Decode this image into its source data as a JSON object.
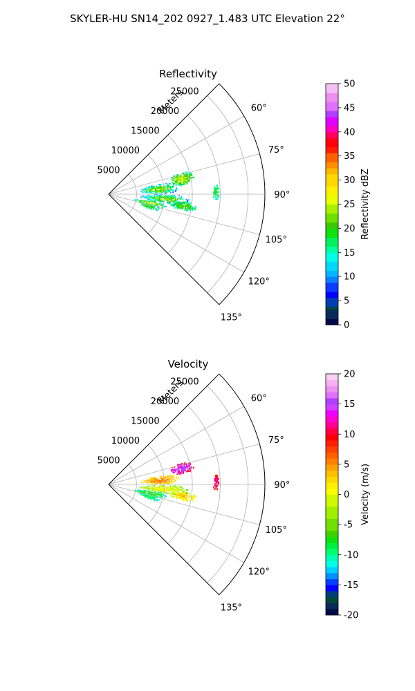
{
  "figure": {
    "suptitle": "SKYLER-HU  SN14_202  0927_1.483 UTC Elevation 22°"
  },
  "chart_data": [
    {
      "type": "polar-sector-heatmap",
      "title": "Reflectivity",
      "radial_label": "Meters",
      "radial_ticks": [
        5000,
        10000,
        15000,
        20000,
        25000
      ],
      "angle_ticks": [
        60,
        75,
        90,
        105,
        120,
        135
      ],
      "angle_range_deg": [
        45,
        135
      ],
      "radius_max": 28000,
      "grid": true,
      "colorbar": {
        "label": "Reflectivity dBZ",
        "ticks": [
          0,
          5,
          10,
          15,
          20,
          25,
          30,
          35,
          40,
          45,
          50
        ],
        "range": [
          0,
          50
        ]
      },
      "echo_regions": [
        {
          "az_range": [
            73,
            83
          ],
          "r_range": [
            11000,
            15500
          ],
          "value_range": [
            12,
            26
          ]
        },
        {
          "az_range": [
            78,
            90
          ],
          "r_range": [
            5500,
            12500
          ],
          "value_range": [
            5,
            25
          ]
        },
        {
          "az_range": [
            90,
            99
          ],
          "r_range": [
            5500,
            14500
          ],
          "value_range": [
            5,
            24
          ]
        },
        {
          "az_range": [
            98,
            106
          ],
          "r_range": [
            4500,
            10500
          ],
          "value_range": [
            10,
            26
          ]
        },
        {
          "az_range": [
            103,
            110
          ],
          "r_range": [
            5500,
            9500
          ],
          "value_range": [
            10,
            22
          ]
        },
        {
          "az_range": [
            95,
            102
          ],
          "r_range": [
            11000,
            16000
          ],
          "value_range": [
            12,
            22
          ]
        },
        {
          "az_range": [
            84,
            93
          ],
          "r_range": [
            18500,
            19800
          ],
          "value_range": [
            12,
            20
          ]
        }
      ]
    },
    {
      "type": "polar-sector-heatmap",
      "title": "Velocity",
      "radial_label": "Meters",
      "radial_ticks": [
        5000,
        10000,
        15000,
        20000,
        25000
      ],
      "angle_ticks": [
        60,
        75,
        90,
        105,
        120,
        135
      ],
      "angle_range_deg": [
        45,
        135
      ],
      "radius_max": 28000,
      "grid": true,
      "colorbar": {
        "label": "Velocity (m/s)",
        "ticks": [
          -20,
          -15,
          -10,
          -5,
          0,
          5,
          10,
          15,
          20
        ],
        "range": [
          -20,
          20
        ]
      },
      "echo_regions": [
        {
          "az_range": [
            73,
            82
          ],
          "r_range": [
            11000,
            15500
          ],
          "value_range": [
            8,
            16
          ]
        },
        {
          "az_range": [
            80,
            90
          ],
          "r_range": [
            5500,
            12500
          ],
          "value_range": [
            0,
            6
          ]
        },
        {
          "az_range": [
            90,
            99
          ],
          "r_range": [
            5500,
            14500
          ],
          "value_range": [
            -7,
            1
          ]
        },
        {
          "az_range": [
            98,
            106
          ],
          "r_range": [
            4500,
            10500
          ],
          "value_range": [
            -13,
            -6
          ]
        },
        {
          "az_range": [
            103,
            110
          ],
          "r_range": [
            5500,
            9500
          ],
          "value_range": [
            -13,
            -8
          ]
        },
        {
          "az_range": [
            95,
            102
          ],
          "r_range": [
            11000,
            16000
          ],
          "value_range": [
            -3,
            4
          ]
        },
        {
          "az_range": [
            84,
            93
          ],
          "r_range": [
            18500,
            19800
          ],
          "value_range": [
            8,
            12
          ]
        }
      ]
    }
  ]
}
